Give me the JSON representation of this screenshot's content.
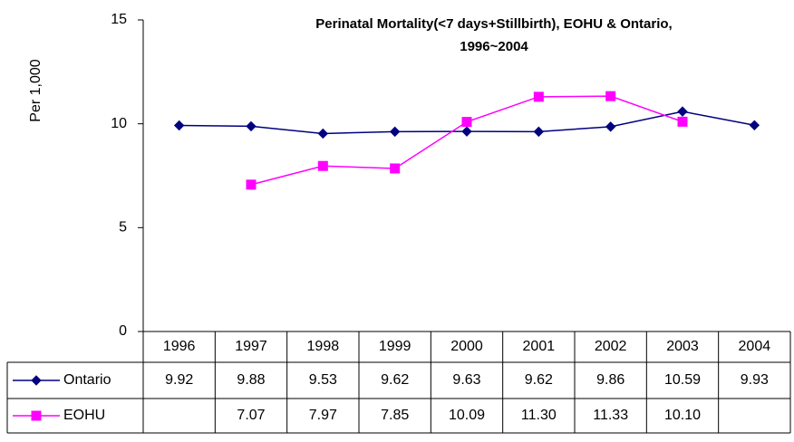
{
  "chart_data": {
    "type": "line",
    "title": [
      "Perinatal Mortality(<7 days+Stillbirth), EOHU & Ontario,",
      "1996~2004"
    ],
    "y_label": "Per 1,000",
    "categories": [
      "1996",
      "1997",
      "1998",
      "1999",
      "2000",
      "2001",
      "2002",
      "2003",
      "2004"
    ],
    "series": [
      {
        "name": "Ontario",
        "color": "#000080",
        "marker": "diamond",
        "values": [
          9.92,
          9.88,
          9.53,
          9.62,
          9.63,
          9.62,
          9.86,
          10.59,
          9.93
        ]
      },
      {
        "name": "EOHU",
        "color": "#ff00ff",
        "marker": "square",
        "values": [
          null,
          7.07,
          7.97,
          7.85,
          10.09,
          11.3,
          11.33,
          10.1,
          null
        ],
        "value_labels": [
          null,
          "7.07",
          "7.97",
          "7.85",
          "10.09",
          "11.30",
          "11.33",
          "10.10",
          null
        ]
      }
    ],
    "ylim": [
      0,
      15
    ],
    "yticks": [
      0,
      5,
      10,
      15
    ],
    "grid": false
  }
}
